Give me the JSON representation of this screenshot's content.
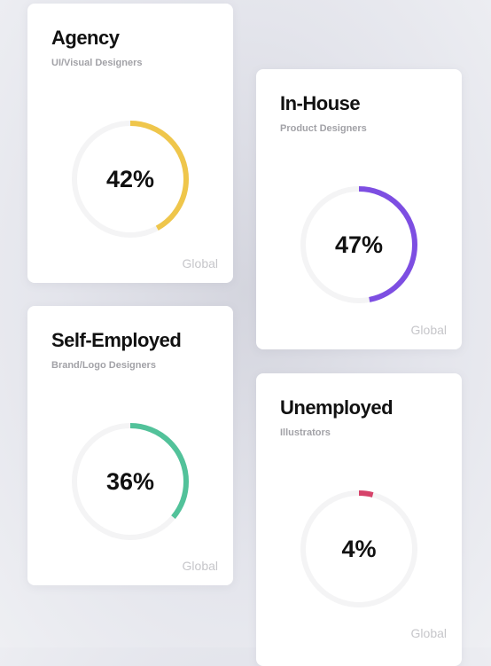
{
  "chart_data": [
    {
      "type": "donut",
      "title": "Agency",
      "subtitle": "UI/Visual Designers",
      "value": 42,
      "label": "42%",
      "region": "Global",
      "color": "#efc64b",
      "track_color": "#f4f4f5"
    },
    {
      "type": "donut",
      "title": "In-House",
      "subtitle": "Product Designers",
      "value": 47,
      "label": "47%",
      "region": "Global",
      "color": "#7d4ee2",
      "track_color": "#f4f4f5"
    },
    {
      "type": "donut",
      "title": "Self-Employed",
      "subtitle": "Brand/Logo Designers",
      "value": 36,
      "label": "36%",
      "region": "Global",
      "color": "#52c29a",
      "track_color": "#f4f4f5"
    },
    {
      "type": "donut",
      "title": "Unemployed",
      "subtitle": "Illustrators",
      "value": 4,
      "label": "4%",
      "region": "Global",
      "color": "#d6436a",
      "track_color": "#f4f4f5"
    }
  ]
}
